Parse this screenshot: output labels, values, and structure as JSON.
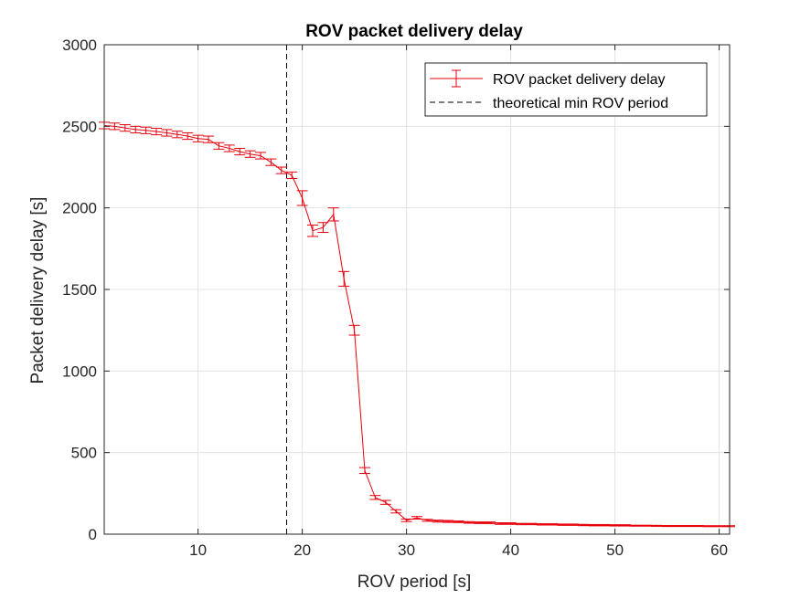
{
  "chart_data": {
    "type": "line",
    "title": "ROV packet delivery delay",
    "xlabel": "ROV period [s]",
    "ylabel": "Packet delivery delay [s]",
    "xlim": [
      1,
      61
    ],
    "ylim": [
      0,
      3000
    ],
    "xticks": [
      10,
      20,
      30,
      40,
      50,
      60
    ],
    "yticks": [
      0,
      500,
      1000,
      1500,
      2000,
      2500,
      3000
    ],
    "grid": true,
    "legend_position": "top-right",
    "colors": {
      "series": "#e8000b",
      "reference": "#000000",
      "grid": "#e3e3e3",
      "axis": "#262626"
    },
    "series": [
      {
        "name": "ROV packet delivery delay",
        "style": "line-with-errorbars",
        "x": [
          1,
          2,
          3,
          4,
          5,
          6,
          7,
          8,
          9,
          10,
          11,
          12,
          13,
          14,
          15,
          16,
          17,
          18,
          19,
          20,
          21,
          22,
          23,
          24,
          25,
          26,
          27,
          28,
          29,
          30,
          31,
          32,
          33,
          34,
          35,
          36,
          37,
          38,
          39,
          40,
          41,
          42,
          43,
          44,
          45,
          46,
          47,
          48,
          49,
          50,
          51,
          52,
          53,
          54,
          55,
          56,
          57,
          58,
          59,
          60,
          61
        ],
        "y": [
          2505,
          2500,
          2490,
          2480,
          2475,
          2468,
          2460,
          2450,
          2440,
          2425,
          2420,
          2380,
          2365,
          2345,
          2330,
          2320,
          2280,
          2230,
          2200,
          2060,
          1860,
          1880,
          1960,
          1565,
          1250,
          390,
          225,
          195,
          140,
          85,
          100,
          85,
          80,
          78,
          76,
          72,
          70,
          70,
          65,
          65,
          62,
          62,
          60,
          60,
          58,
          58,
          56,
          55,
          55,
          54,
          54,
          52,
          52,
          51,
          50,
          50,
          50,
          50,
          49,
          49,
          49
        ],
        "err": [
          20,
          20,
          20,
          20,
          20,
          20,
          20,
          20,
          20,
          20,
          20,
          20,
          20,
          20,
          20,
          20,
          20,
          20,
          20,
          45,
          35,
          30,
          40,
          45,
          30,
          18,
          12,
          12,
          10,
          8,
          8,
          6,
          6,
          6,
          5,
          5,
          5,
          5,
          5,
          5,
          4,
          4,
          4,
          4,
          4,
          4,
          4,
          4,
          4,
          4,
          4,
          3,
          3,
          3,
          3,
          3,
          3,
          3,
          3,
          3,
          3
        ]
      },
      {
        "name": "theoretical min ROV period",
        "style": "dashed-vertical",
        "x": 18.5
      }
    ]
  }
}
